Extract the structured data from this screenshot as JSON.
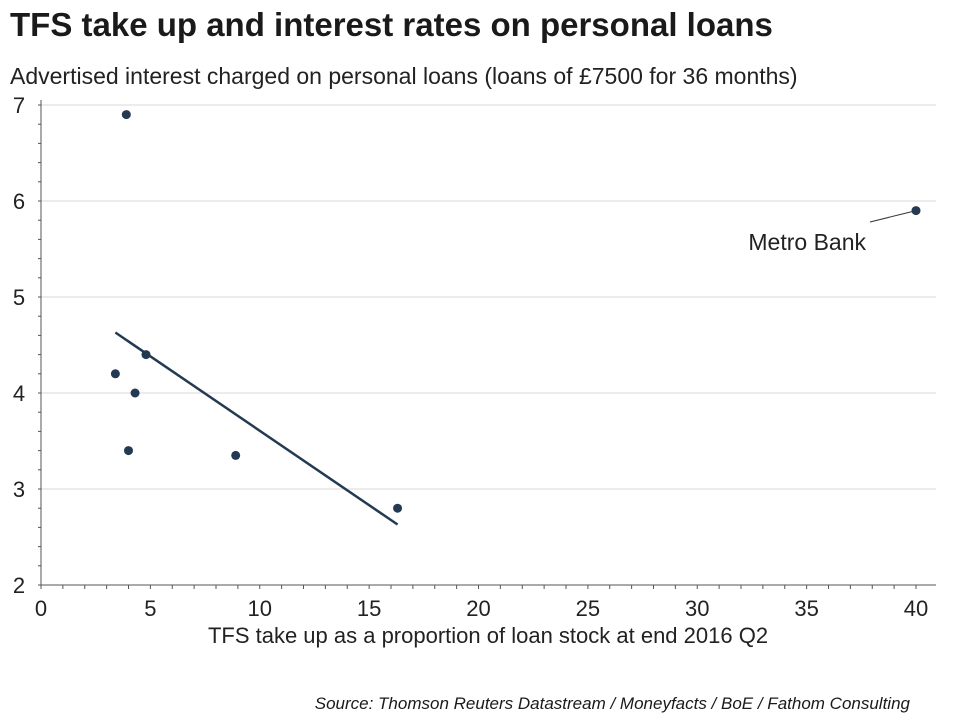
{
  "title": "TFS take up and interest rates on personal loans",
  "subtitle": "Advertised interest charged on personal loans (loans of £7500 for 36 months)",
  "source": "Source: Thomson Reuters Datastream / Moneyfacts / BoE / Fathom Consulting",
  "colors": {
    "points": "#243a52",
    "trendline": "#243a52",
    "grid": "#d9d9d9",
    "axis": "#555555"
  },
  "chart_data": {
    "type": "scatter",
    "title": "TFS take up and interest rates on personal loans",
    "subtitle": "Advertised interest charged on personal loans (loans of £7500 for 36 months)",
    "xlabel": "TFS take up as a proportion of loan stock at end 2016 Q2",
    "ylabel": "",
    "xlim": [
      0,
      40
    ],
    "ylim": [
      2,
      7
    ],
    "xticks": [
      0,
      5,
      10,
      15,
      20,
      25,
      30,
      35,
      40
    ],
    "yticks": [
      2,
      3,
      4,
      5,
      6,
      7
    ],
    "grid": "horizontal",
    "points": [
      {
        "x": 3.9,
        "y": 6.9
      },
      {
        "x": 3.4,
        "y": 4.2
      },
      {
        "x": 4.8,
        "y": 4.4
      },
      {
        "x": 4.3,
        "y": 4.0
      },
      {
        "x": 4.0,
        "y": 3.4
      },
      {
        "x": 8.9,
        "y": 3.35
      },
      {
        "x": 16.3,
        "y": 2.8
      },
      {
        "x": 40.0,
        "y": 5.9
      }
    ],
    "trendline": {
      "x": [
        3.4,
        16.3
      ],
      "y": [
        4.63,
        2.63
      ]
    },
    "annotations": [
      {
        "text": "Metro Bank",
        "x": 40.0,
        "y": 5.9
      }
    ]
  }
}
